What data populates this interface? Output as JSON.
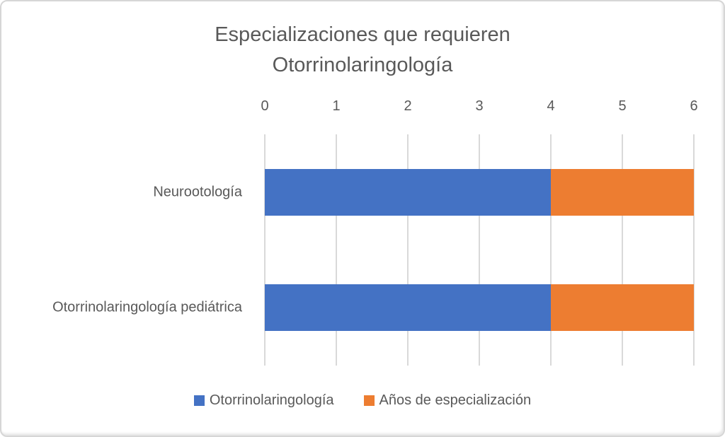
{
  "chart_data": {
    "type": "bar",
    "orientation": "horizontal",
    "stacked": true,
    "title": "Especializaciones que requieren Otorrinolaringología",
    "categories": [
      "Neurootología",
      "Otorrinolaringología pediátrica"
    ],
    "series": [
      {
        "name": "Otorrinolaringología",
        "color": "#4472C4",
        "values": [
          4,
          4
        ]
      },
      {
        "name": "Años de especialización",
        "color": "#ED7D31",
        "values": [
          2,
          2
        ]
      }
    ],
    "x_axis": {
      "min": 0,
      "max": 6,
      "step": 1,
      "ticks": [
        0,
        1,
        2,
        3,
        4,
        5,
        6
      ],
      "position": "top"
    },
    "grid": true,
    "legend_position": "bottom",
    "colors": {
      "text": "#595959",
      "gridline": "#D9D9D9",
      "background": "#FFFFFF",
      "border": "#D6D6D6"
    }
  }
}
